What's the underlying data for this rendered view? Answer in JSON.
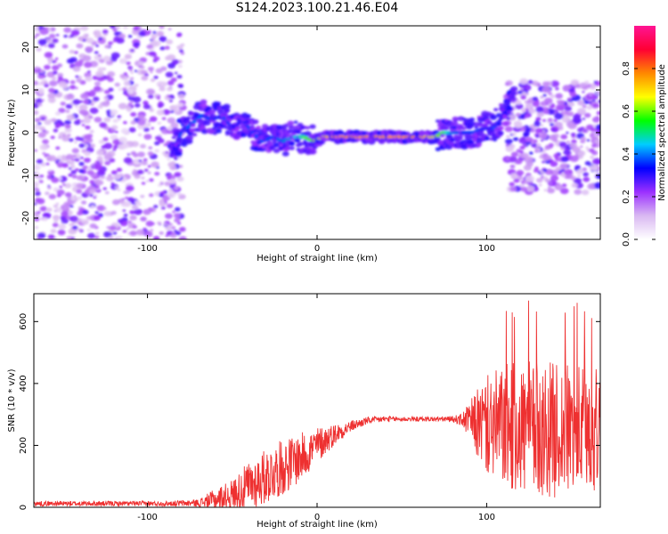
{
  "title": "S124.2023.100.21.46.E04",
  "chart_data": [
    {
      "type": "heatmap",
      "xlabel": "Height of straight line (km)",
      "ylabel": "Frequency (Hz)",
      "xlim": [
        -167,
        167
      ],
      "ylim": [
        -25,
        25
      ],
      "xticks": [
        -100,
        0,
        100
      ],
      "yticks": [
        -20,
        -10,
        0,
        10,
        20
      ],
      "colorbar": {
        "label": "Normalized spectral amplitude",
        "range": [
          0,
          1
        ],
        "ticks": [
          "0.0",
          "0.2",
          "0.4",
          "0.6",
          "0.8"
        ],
        "colormap": [
          "#ffffff",
          "#d9b8f2",
          "#9b30ff",
          "#0000ff",
          "#00ccff",
          "#00ff00",
          "#ffff00",
          "#ff8800",
          "#ff0033",
          "#ff1493"
        ]
      },
      "ridge": {
        "x": [
          -86,
          -80,
          -74,
          -68,
          -62,
          -56,
          -50,
          -44,
          -38,
          -32,
          -26,
          -20,
          -14,
          -8,
          -2,
          4,
          10,
          20,
          30,
          40,
          50,
          60,
          70,
          74,
          80,
          86,
          92,
          98,
          104,
          108,
          112,
          116
        ],
        "y": [
          -5,
          0,
          2,
          4,
          3,
          4,
          1,
          3,
          0,
          -2,
          -1,
          -2,
          -1,
          -1,
          -2,
          -1,
          -1,
          -1,
          -1,
          -1,
          -1,
          -1,
          -1,
          0,
          0,
          0,
          0,
          1,
          1,
          3,
          6,
          10
        ],
        "peak_level": [
          0.3,
          0.4,
          0.45,
          0.45,
          0.4,
          0.4,
          0.35,
          0.35,
          0.4,
          0.45,
          0.45,
          0.5,
          0.55,
          0.65,
          0.8,
          0.9,
          1.0,
          1.0,
          1.0,
          1.0,
          1.0,
          1.0,
          0.85,
          0.7,
          0.5,
          0.45,
          0.45,
          0.4,
          0.4,
          0.35,
          0.35,
          0.3
        ]
      }
    },
    {
      "type": "line",
      "xlabel": "Height of straight line (km)",
      "ylabel": "SNR (10 * v/v)",
      "xlim": [
        -167,
        167
      ],
      "ylim": [
        0,
        690
      ],
      "xticks": [
        -100,
        0,
        100
      ],
      "yticks": [
        0,
        200,
        400,
        600
      ],
      "color": "#ee3030",
      "envelope": {
        "x": [
          -167,
          -120,
          -90,
          -70,
          -60,
          -50,
          -40,
          -30,
          -20,
          -10,
          0,
          10,
          20,
          30,
          40,
          50,
          60,
          70,
          80,
          85,
          90,
          95,
          100,
          110,
          120,
          130,
          140,
          150,
          160,
          167
        ],
        "base": [
          12,
          12,
          12,
          14,
          25,
          40,
          70,
          100,
          130,
          160,
          200,
          235,
          262,
          280,
          285,
          285,
          285,
          285,
          285,
          283,
          280,
          270,
          265,
          260,
          255,
          250,
          250,
          250,
          250,
          250
        ],
        "spread": [
          8,
          8,
          8,
          12,
          35,
          50,
          80,
          90,
          90,
          80,
          60,
          35,
          18,
          12,
          10,
          8,
          8,
          8,
          10,
          20,
          60,
          120,
          160,
          200,
          220,
          220,
          220,
          210,
          210,
          200
        ]
      }
    }
  ]
}
